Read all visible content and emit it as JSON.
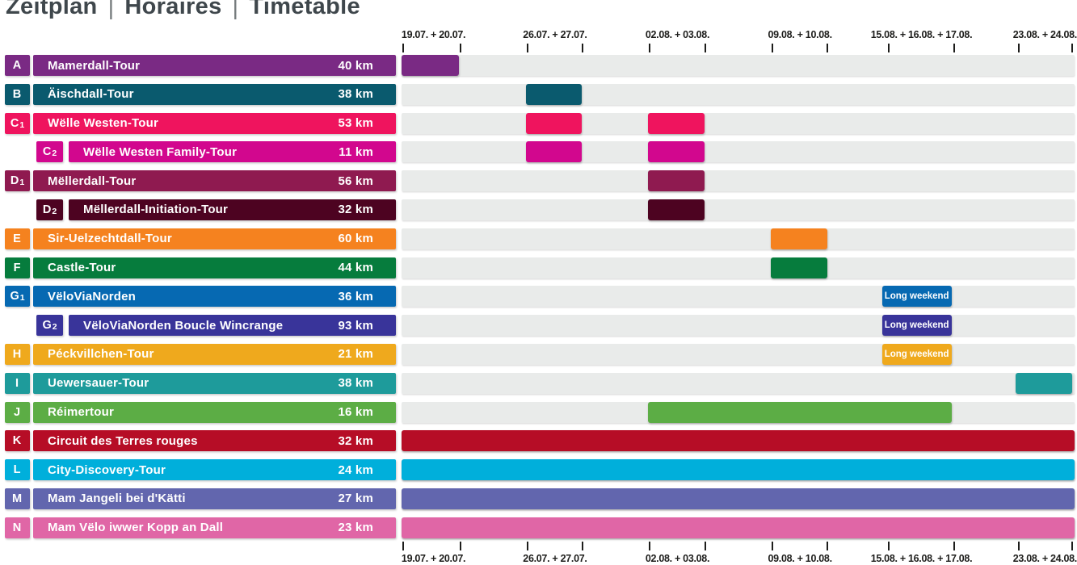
{
  "title": {
    "de": "Zeitplan",
    "fr": "Horaires",
    "en": "Timetable",
    "separator": "|"
  },
  "axis": {
    "tick_positions_pct": [
      0.25,
      8.75,
      18.7,
      26.9,
      36.85,
      45.15,
      55.1,
      63.25,
      72.4,
      82.1,
      91.7,
      99.65
    ],
    "labels": [
      {
        "text": "19.07. + 20.07.",
        "center_pct": 4.75
      },
      {
        "text": "26.07. + 27.07.",
        "center_pct": 22.8
      },
      {
        "text": "02.08. + 03.08.",
        "center_pct": 41.0
      },
      {
        "text": "09.08. + 10.08.",
        "center_pct": 59.2
      },
      {
        "text": "15.08. + 16.08. + 17.08.",
        "center_pct": 77.25
      },
      {
        "text": "23.08. + 24.08.",
        "center_pct": 95.6
      }
    ]
  },
  "chart_data": {
    "type": "bar",
    "subtype": "gantt-timetable",
    "title": "Zeitplan | Horaires | Timetable",
    "timeline_dates": [
      "19.07.",
      "20.07.",
      "26.07.",
      "27.07.",
      "02.08.",
      "03.08.",
      "09.08.",
      "10.08.",
      "15.08.",
      "16.08.",
      "17.08.",
      "23.08.",
      "24.08."
    ],
    "track_color": "#E9EBEA",
    "tours": [
      {
        "id": "A",
        "sub": "",
        "name": "Mamerdall-Tour",
        "distance": "40 km",
        "color": "#7A2A84",
        "indent": false,
        "weekends": [
          "19.07. + 20.07."
        ],
        "bars": [
          {
            "left_pct": 0,
            "width_pct": 8.5,
            "label": ""
          }
        ]
      },
      {
        "id": "B",
        "sub": "",
        "name": "Äischdall-Tour",
        "distance": "38 km",
        "color": "#0A5A6E",
        "indent": false,
        "weekends": [
          "26.07. + 27.07."
        ],
        "bars": [
          {
            "left_pct": 18.5,
            "width_pct": 8.3,
            "label": ""
          }
        ]
      },
      {
        "id": "C",
        "sub": "1",
        "name": "Wëlle Westen-Tour",
        "distance": "53 km",
        "color": "#EF145E",
        "indent": false,
        "weekends": [
          "26.07. + 27.07.",
          "02.08. + 03.08."
        ],
        "bars": [
          {
            "left_pct": 18.5,
            "width_pct": 8.3,
            "label": ""
          },
          {
            "left_pct": 36.6,
            "width_pct": 8.4,
            "label": ""
          }
        ]
      },
      {
        "id": "C",
        "sub": "2",
        "name": "Wëlle Westen Family-Tour",
        "distance": "11 km",
        "color": "#D2078E",
        "indent": true,
        "weekends": [
          "26.07. + 27.07.",
          "02.08. + 03.08."
        ],
        "bars": [
          {
            "left_pct": 18.5,
            "width_pct": 8.3,
            "label": ""
          },
          {
            "left_pct": 36.6,
            "width_pct": 8.4,
            "label": ""
          }
        ]
      },
      {
        "id": "D",
        "sub": "1",
        "name": "Mëllerdall-Tour",
        "distance": "56 km",
        "color": "#8F1A50",
        "indent": false,
        "weekends": [
          "02.08. + 03.08."
        ],
        "bars": [
          {
            "left_pct": 36.6,
            "width_pct": 8.4,
            "label": ""
          }
        ]
      },
      {
        "id": "D",
        "sub": "2",
        "name": "Mëllerdall-Initiation-Tour",
        "distance": "32 km",
        "color": "#4D0321",
        "indent": true,
        "weekends": [
          "02.08. + 03.08."
        ],
        "bars": [
          {
            "left_pct": 36.6,
            "width_pct": 8.4,
            "label": ""
          }
        ]
      },
      {
        "id": "E",
        "sub": "",
        "name": "Sir-Uelzechtdall-Tour",
        "distance": "60 km",
        "color": "#F5821F",
        "indent": false,
        "weekends": [
          "09.08. + 10.08."
        ],
        "bars": [
          {
            "left_pct": 54.9,
            "width_pct": 8.4,
            "label": ""
          }
        ]
      },
      {
        "id": "F",
        "sub": "",
        "name": "Castle-Tour",
        "distance": "44 km",
        "color": "#067C3D",
        "indent": false,
        "weekends": [
          "09.08. + 10.08."
        ],
        "bars": [
          {
            "left_pct": 54.9,
            "width_pct": 8.4,
            "label": ""
          }
        ]
      },
      {
        "id": "G",
        "sub": "1",
        "name": "VëloViaNorden",
        "distance": "36 km",
        "color": "#0669B2",
        "indent": false,
        "weekends": [
          "15.08. + 16.08. + 17.08."
        ],
        "bars": [
          {
            "left_pct": 71.4,
            "width_pct": 10.3,
            "label": "Long weekend"
          }
        ]
      },
      {
        "id": "G",
        "sub": "2",
        "name": "VëloViaNorden Boucle Wincrange",
        "distance": "93 km",
        "color": "#39349A",
        "indent": true,
        "weekends": [
          "15.08. + 16.08. + 17.08."
        ],
        "bars": [
          {
            "left_pct": 71.4,
            "width_pct": 10.3,
            "label": "Long weekend"
          }
        ]
      },
      {
        "id": "H",
        "sub": "",
        "name": "Péckvillchen-Tour",
        "distance": "21 km",
        "color": "#EFA91D",
        "indent": false,
        "weekends": [
          "15.08. + 16.08. + 17.08."
        ],
        "bars": [
          {
            "left_pct": 71.4,
            "width_pct": 10.3,
            "label": "Long weekend"
          }
        ]
      },
      {
        "id": "I",
        "sub": "",
        "name": "Uewersauer-Tour",
        "distance": "38 km",
        "color": "#1E9B9B",
        "indent": false,
        "weekends": [
          "23.08. + 24.08."
        ],
        "bars": [
          {
            "left_pct": 91.2,
            "width_pct": 8.4,
            "label": ""
          }
        ]
      },
      {
        "id": "J",
        "sub": "",
        "name": "Réimertour",
        "distance": "16 km",
        "color": "#5CAD45",
        "indent": false,
        "weekends": [
          "02.08. – 17.08."
        ],
        "bars": [
          {
            "left_pct": 36.6,
            "width_pct": 45.1,
            "label": ""
          }
        ]
      },
      {
        "id": "K",
        "sub": "",
        "name": "Circuit des Terres rouges",
        "distance": "32 km",
        "color": "#B60D26",
        "indent": false,
        "weekends": [
          "19.07. – 24.08."
        ],
        "bars": [
          {
            "left_pct": 0,
            "width_pct": 100,
            "label": ""
          }
        ]
      },
      {
        "id": "L",
        "sub": "",
        "name": "City-Discovery-Tour",
        "distance": "24 km",
        "color": "#00AFDB",
        "indent": false,
        "weekends": [
          "19.07. – 24.08."
        ],
        "bars": [
          {
            "left_pct": 0,
            "width_pct": 100,
            "label": ""
          }
        ]
      },
      {
        "id": "M",
        "sub": "",
        "name": "Mam Jangeli bei d'Kätti",
        "distance": "27 km",
        "color": "#6266AE",
        "indent": false,
        "weekends": [
          "19.07. – 24.08."
        ],
        "bars": [
          {
            "left_pct": 0,
            "width_pct": 100,
            "label": ""
          }
        ]
      },
      {
        "id": "N",
        "sub": "",
        "name": "Mam Vëlo iwwer Kopp an Dall",
        "distance": "23 km",
        "color": "#E066A6",
        "indent": false,
        "weekends": [
          "19.07. – 24.08."
        ],
        "bars": [
          {
            "left_pct": 0,
            "width_pct": 100,
            "label": ""
          }
        ]
      }
    ]
  }
}
